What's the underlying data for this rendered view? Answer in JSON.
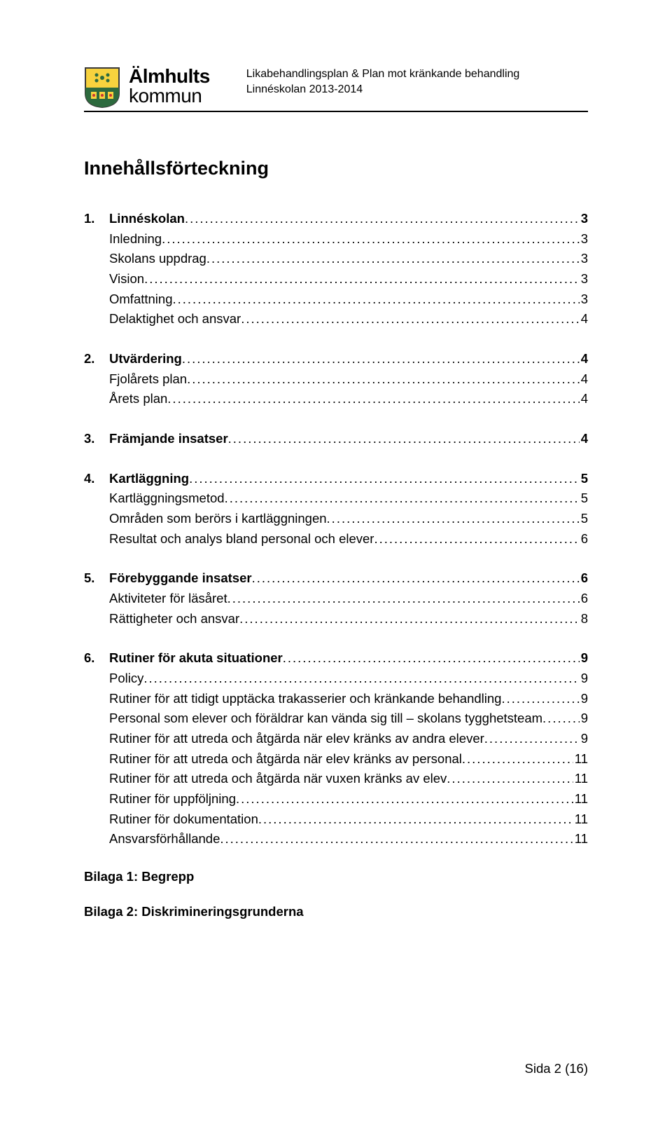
{
  "header": {
    "org_line1": "Älmhults",
    "org_line2": "kommun",
    "doc_title_line1": "Likabehandlingsplan & Plan mot kränkande behandling",
    "doc_title_line2": "Linnéskolan 2013-2014"
  },
  "main_title": "Innehållsförteckning",
  "toc": [
    {
      "num": "1.",
      "label": "Linnéskolan",
      "page": "3",
      "bold": true,
      "indent": false,
      "gap": false
    },
    {
      "num": "",
      "label": "Inledning",
      "page": "3",
      "bold": false,
      "indent": true,
      "gap": false
    },
    {
      "num": "",
      "label": "Skolans uppdrag",
      "page": "3",
      "bold": false,
      "indent": true,
      "gap": false
    },
    {
      "num": "",
      "label": "Vision",
      "page": "3",
      "bold": false,
      "indent": true,
      "gap": false
    },
    {
      "num": "",
      "label": "Omfattning",
      "page": "3",
      "bold": false,
      "indent": true,
      "gap": false
    },
    {
      "num": "",
      "label": "Delaktighet och ansvar",
      "page": "4",
      "bold": false,
      "indent": true,
      "gap": false
    },
    {
      "num": "2.",
      "label": "Utvärdering",
      "page": "4",
      "bold": true,
      "indent": false,
      "gap": true
    },
    {
      "num": "",
      "label": "Fjolårets plan",
      "page": "4",
      "bold": false,
      "indent": true,
      "gap": false
    },
    {
      "num": "",
      "label": "Årets plan",
      "page": "4",
      "bold": false,
      "indent": true,
      "gap": false
    },
    {
      "num": "3.",
      "label": "Främjande insatser",
      "page": "4",
      "bold": true,
      "indent": false,
      "gap": true
    },
    {
      "num": "4.",
      "label": "Kartläggning",
      "page": "5",
      "bold": true,
      "indent": false,
      "gap": true
    },
    {
      "num": "",
      "label": "Kartläggningsmetod",
      "page": "5",
      "bold": false,
      "indent": true,
      "gap": false
    },
    {
      "num": "",
      "label": "Områden som berörs i kartläggningen",
      "page": "5",
      "bold": false,
      "indent": true,
      "gap": false
    },
    {
      "num": "",
      "label": "Resultat och analys bland personal och elever",
      "page": "6",
      "bold": false,
      "indent": true,
      "gap": false
    },
    {
      "num": "5.",
      "label": "Förebyggande insatser",
      "page": "6",
      "bold": true,
      "indent": false,
      "gap": true
    },
    {
      "num": "",
      "label": "Aktiviteter för läsåret",
      "page": "6",
      "bold": false,
      "indent": true,
      "gap": false
    },
    {
      "num": "",
      "label": "Rättigheter och ansvar",
      "page": "8",
      "bold": false,
      "indent": true,
      "gap": false
    },
    {
      "num": "6.",
      "label": "Rutiner för akuta situationer",
      "page": "9",
      "bold": true,
      "indent": false,
      "gap": true
    },
    {
      "num": "",
      "label": "Policy",
      "page": "9",
      "bold": false,
      "indent": true,
      "gap": false
    },
    {
      "num": "",
      "label": "Rutiner för att tidigt upptäcka trakasserier och kränkande behandling",
      "page": "9",
      "bold": false,
      "indent": true,
      "gap": false
    },
    {
      "num": "",
      "label": "Personal som elever och föräldrar kan vända sig till – skolans tygghetsteam",
      "page": "9",
      "bold": false,
      "indent": true,
      "gap": false
    },
    {
      "num": "",
      "label": "Rutiner för att utreda och åtgärda när elev kränks av andra elever",
      "page": "9",
      "bold": false,
      "indent": true,
      "gap": false
    },
    {
      "num": "",
      "label": "Rutiner för att utreda och åtgärda när elev kränks av personal",
      "page": "11",
      "bold": false,
      "indent": true,
      "gap": false
    },
    {
      "num": "",
      "label": "Rutiner för att utreda och åtgärda när vuxen kränks av elev",
      "page": "11",
      "bold": false,
      "indent": true,
      "gap": false
    },
    {
      "num": "",
      "label": "Rutiner för uppföljning",
      "page": "11",
      "bold": false,
      "indent": true,
      "gap": false
    },
    {
      "num": "",
      "label": "Rutiner för dokumentation",
      "page": "11",
      "bold": false,
      "indent": true,
      "gap": false
    },
    {
      "num": "",
      "label": "Ansvarsförhållande",
      "page": "11",
      "bold": false,
      "indent": true,
      "gap": false
    }
  ],
  "appendices": [
    "Bilaga 1: Begrepp",
    "Bilaga 2: Diskrimineringsgrunderna"
  ],
  "footer": "Sida 2 (16)",
  "crest_colors": {
    "outline": "#3a3a3a",
    "bg_top": "#f7d23e",
    "bg_bottom": "#2d6a3e",
    "flower": "#2d6a3e",
    "accent": "#c33"
  }
}
